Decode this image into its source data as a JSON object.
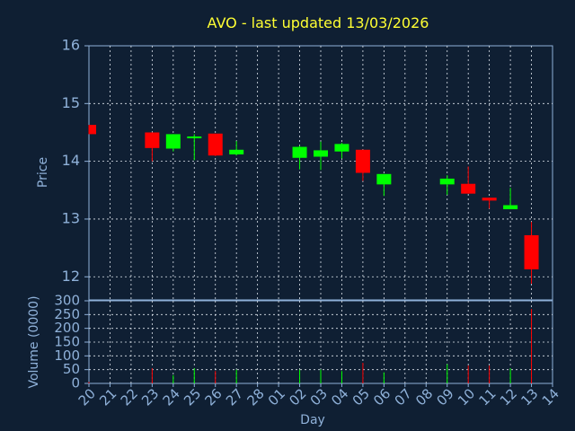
{
  "chart_data": [
    {
      "type": "candlestick",
      "title": "AVO - last updated 13/03/2026",
      "xlabel": "Day",
      "ylabel": "Price",
      "ylim": [
        11.6,
        16
      ],
      "yticks": [
        12,
        13,
        14,
        15,
        16
      ],
      "x_tick_labels": [
        "20",
        "21",
        "22",
        "23",
        "24",
        "25",
        "26",
        "27",
        "28",
        "01",
        "02",
        "03",
        "04",
        "05",
        "06",
        "07",
        "08",
        "09",
        "10",
        "11",
        "12",
        "13",
        "14"
      ],
      "grid": true,
      "up_color": "#00ff00",
      "down_color": "#ff0000",
      "candles": [
        {
          "day": "20",
          "open": 14.63,
          "high": 14.63,
          "low": 14.47,
          "close": 14.47
        },
        {
          "day": "23",
          "open": 14.5,
          "high": 14.5,
          "low": 14.0,
          "close": 14.23
        },
        {
          "day": "24",
          "open": 14.22,
          "high": 14.47,
          "low": 14.17,
          "close": 14.47
        },
        {
          "day": "25",
          "open": 14.41,
          "high": 14.47,
          "low": 14.02,
          "close": 14.43
        },
        {
          "day": "26",
          "open": 14.48,
          "high": 14.48,
          "low": 14.09,
          "close": 14.1
        },
        {
          "day": "27",
          "open": 14.12,
          "high": 14.35,
          "low": 14.1,
          "close": 14.2
        },
        {
          "day": "02",
          "open": 14.06,
          "high": 14.27,
          "low": 13.86,
          "close": 14.25
        },
        {
          "day": "03",
          "open": 14.08,
          "high": 14.34,
          "low": 13.85,
          "close": 14.19
        },
        {
          "day": "04",
          "open": 14.17,
          "high": 14.32,
          "low": 14.05,
          "close": 14.3
        },
        {
          "day": "05",
          "open": 14.2,
          "high": 14.2,
          "low": 13.66,
          "close": 13.8
        },
        {
          "day": "06",
          "open": 13.6,
          "high": 13.78,
          "low": 13.4,
          "close": 13.78
        },
        {
          "day": "09",
          "open": 13.6,
          "high": 13.76,
          "low": 13.42,
          "close": 13.7
        },
        {
          "day": "10",
          "open": 13.61,
          "high": 13.91,
          "low": 13.44,
          "close": 13.44
        },
        {
          "day": "11",
          "open": 13.37,
          "high": 13.37,
          "low": 13.18,
          "close": 13.32
        },
        {
          "day": "12",
          "open": 13.17,
          "high": 13.54,
          "low": 13.17,
          "close": 13.24
        },
        {
          "day": "13",
          "open": 12.72,
          "high": 12.95,
          "low": 11.88,
          "close": 12.13
        }
      ]
    },
    {
      "type": "bar",
      "xlabel": "Day",
      "ylabel": "Volume (0000)",
      "ylim": [
        0,
        300
      ],
      "yticks": [
        0,
        50,
        100,
        150,
        200,
        250,
        300
      ],
      "grid": true,
      "bars": [
        {
          "day": "20",
          "value": 5,
          "direction": "down"
        },
        {
          "day": "23",
          "value": 55,
          "direction": "down"
        },
        {
          "day": "24",
          "value": 30,
          "direction": "up"
        },
        {
          "day": "25",
          "value": 55,
          "direction": "up"
        },
        {
          "day": "26",
          "value": 45,
          "direction": "down"
        },
        {
          "day": "27",
          "value": 50,
          "direction": "up"
        },
        {
          "day": "02",
          "value": 50,
          "direction": "up"
        },
        {
          "day": "03",
          "value": 50,
          "direction": "up"
        },
        {
          "day": "04",
          "value": 45,
          "direction": "up"
        },
        {
          "day": "05",
          "value": 75,
          "direction": "down"
        },
        {
          "day": "06",
          "value": 40,
          "direction": "up"
        },
        {
          "day": "09",
          "value": 70,
          "direction": "up"
        },
        {
          "day": "10",
          "value": 65,
          "direction": "down"
        },
        {
          "day": "11",
          "value": 65,
          "direction": "down"
        },
        {
          "day": "12",
          "value": 55,
          "direction": "up"
        },
        {
          "day": "13",
          "value": 270,
          "direction": "down"
        }
      ]
    }
  ]
}
